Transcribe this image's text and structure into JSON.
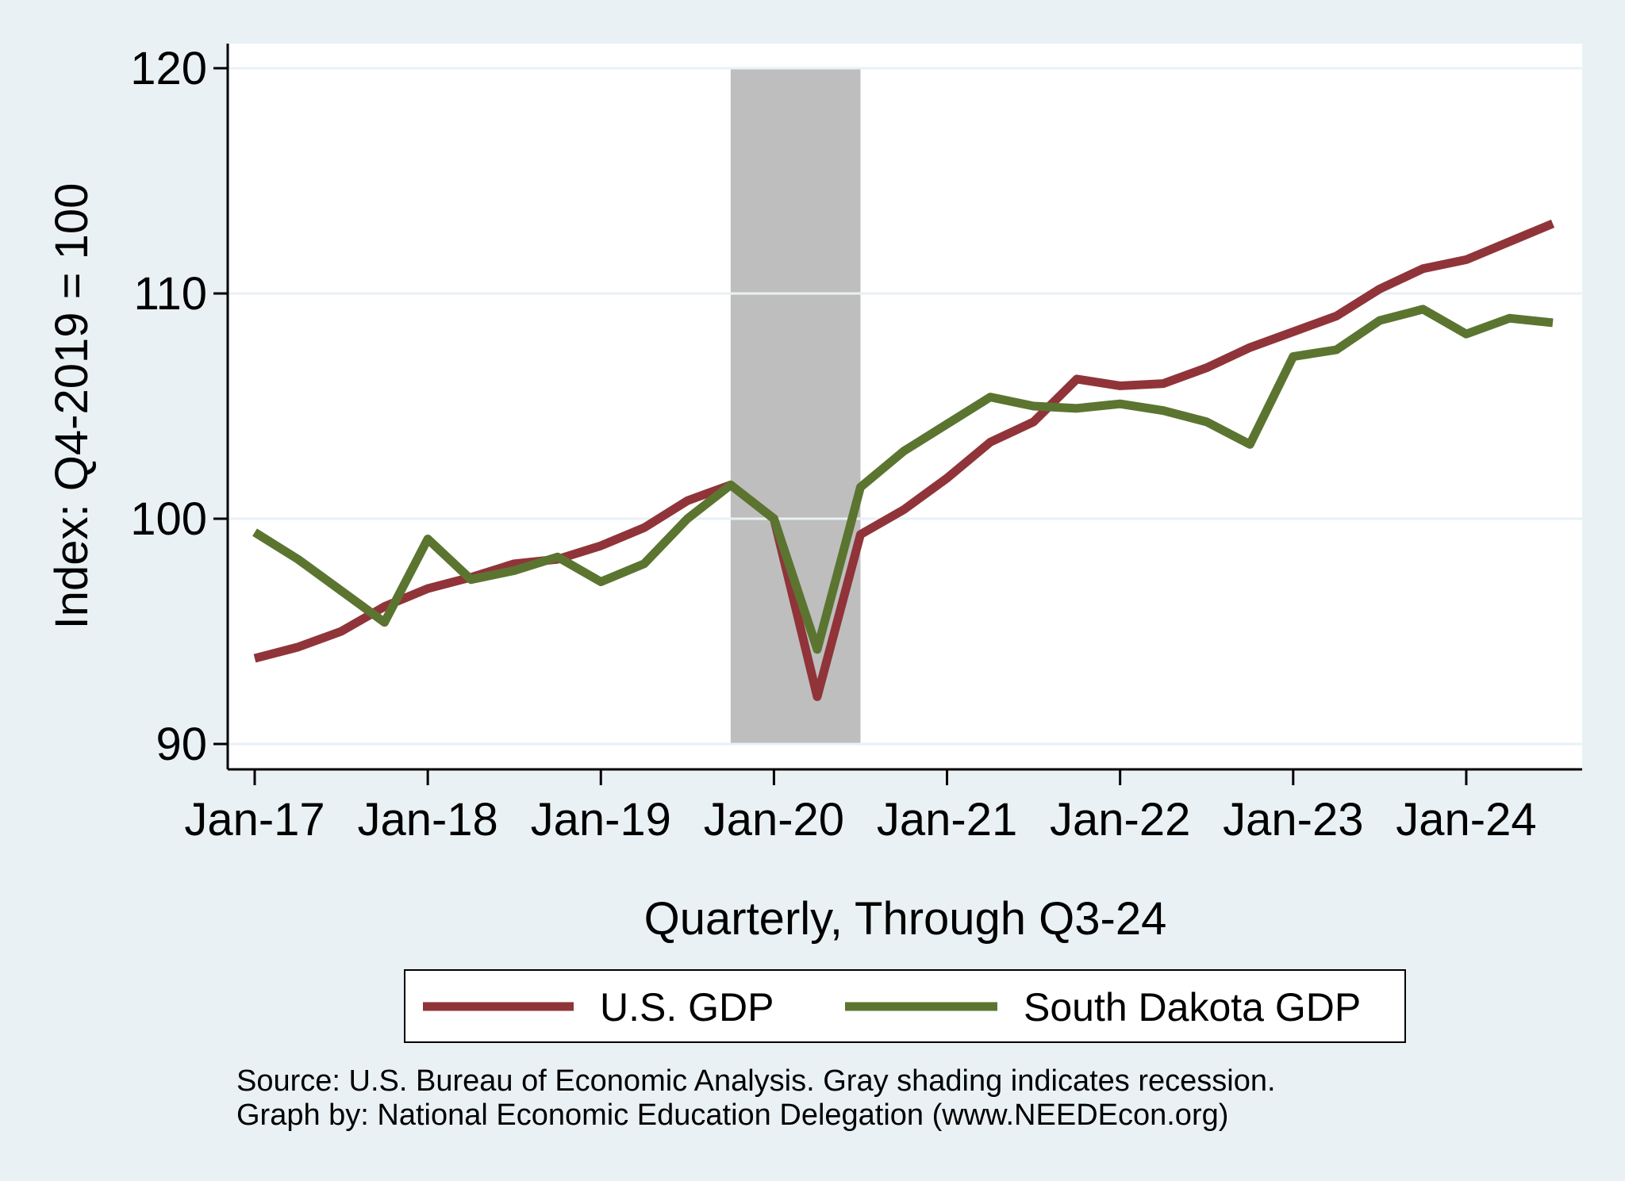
{
  "chart_data": {
    "type": "line",
    "title": "",
    "xlabel": "Quarterly, Through Q3-24",
    "ylabel": "Index: Q4-2019 = 100",
    "ylim": [
      90,
      120
    ],
    "yticks": [
      90,
      100,
      110,
      120
    ],
    "x_range": [
      "2017-01",
      "2024-07"
    ],
    "xticks": [
      {
        "date": "2017-01",
        "label": "Jan-17"
      },
      {
        "date": "2018-01",
        "label": "Jan-18"
      },
      {
        "date": "2019-01",
        "label": "Jan-19"
      },
      {
        "date": "2020-01",
        "label": "Jan-20"
      },
      {
        "date": "2021-01",
        "label": "Jan-21"
      },
      {
        "date": "2022-01",
        "label": "Jan-22"
      },
      {
        "date": "2023-01",
        "label": "Jan-23"
      },
      {
        "date": "2024-01",
        "label": "Jan-24"
      }
    ],
    "x": [
      "2017-01",
      "2017-04",
      "2017-07",
      "2017-10",
      "2018-01",
      "2018-04",
      "2018-07",
      "2018-10",
      "2019-01",
      "2019-04",
      "2019-07",
      "2019-10",
      "2020-01",
      "2020-04",
      "2020-07",
      "2020-10",
      "2021-01",
      "2021-04",
      "2021-07",
      "2021-10",
      "2022-01",
      "2022-04",
      "2022-07",
      "2022-10",
      "2023-01",
      "2023-04",
      "2023-07",
      "2023-10",
      "2024-01",
      "2024-04",
      "2024-07"
    ],
    "series": [
      {
        "name": "U.S. GDP",
        "color": "#903439",
        "values": [
          93.8,
          94.3,
          95.0,
          96.1,
          96.9,
          97.4,
          98.0,
          98.2,
          98.8,
          99.6,
          100.8,
          101.5,
          100.0,
          92.1,
          99.3,
          100.4,
          101.8,
          103.4,
          104.3,
          106.2,
          105.9,
          106.0,
          106.7,
          107.6,
          108.3,
          109.0,
          110.2,
          111.1,
          111.5,
          112.3,
          113.1
        ]
      },
      {
        "name": "South Dakota GDP",
        "color": "#5b7530",
        "values": [
          99.4,
          98.2,
          96.8,
          95.4,
          99.1,
          97.3,
          97.7,
          98.3,
          97.2,
          98.0,
          100.0,
          101.5,
          100.0,
          94.2,
          101.4,
          103.0,
          104.2,
          105.4,
          105.0,
          104.9,
          105.1,
          104.8,
          104.3,
          103.3,
          107.2,
          107.5,
          108.8,
          109.3,
          108.2,
          108.9,
          108.7
        ]
      }
    ],
    "recession": {
      "start": "2019-10",
      "end": "2020-07",
      "color": "#bebebe"
    },
    "grid": "horizontal",
    "legend_position": "bottom"
  },
  "source_note": [
    "Source: U.S. Bureau of Economic Analysis. Gray shading indicates recession.",
    "Graph by: National Economic Education Delegation (www.NEEDEcon.org)"
  ]
}
